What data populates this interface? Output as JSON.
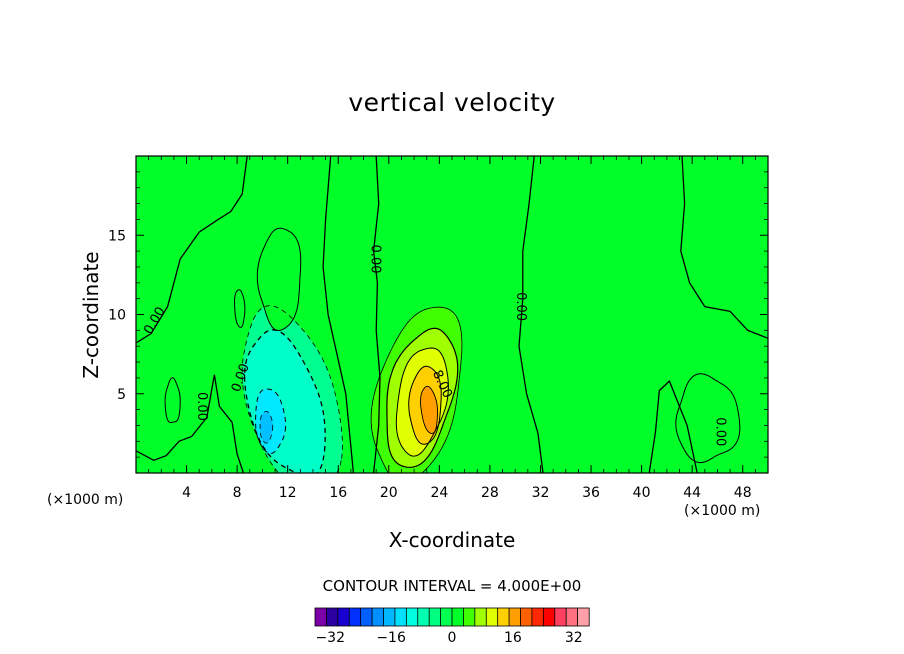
{
  "chart_data": {
    "type": "heatmap",
    "title": "vertical velocity",
    "xlabel": "X-coordinate",
    "ylabel": "Z-coordinate",
    "x_unit_left": "(×1000 m)",
    "x_unit_right": "(×1000 m)",
    "xlim": [
      0,
      50
    ],
    "ylim": [
      0,
      20
    ],
    "x_ticks": [
      "4",
      "8",
      "12",
      "16",
      "20",
      "24",
      "28",
      "32",
      "36",
      "40",
      "44",
      "48"
    ],
    "y_ticks": [
      "5",
      "10",
      "15"
    ],
    "contour_interval_text": "CONTOUR INTERVAL = 4.000E+00",
    "contour_interval": 4,
    "colorbar": {
      "min": -36,
      "max": 36,
      "tick_labels": [
        "−32",
        "−16",
        "0",
        "16",
        "32"
      ],
      "colors": [
        "#7c00a8",
        "#2c00a0",
        "#1a00d0",
        "#0030ff",
        "#0060ff",
        "#0090ff",
        "#00b8ff",
        "#00e0ff",
        "#00ffe0",
        "#00ffb0",
        "#00ff80",
        "#00ff50",
        "#00ff28",
        "#40ff00",
        "#a0ff00",
        "#e0ff00",
        "#ffd000",
        "#ffa000",
        "#ff6000",
        "#ff2800",
        "#ff0000",
        "#ff4060",
        "#ff7080",
        "#ffa0a8"
      ]
    },
    "background_color": "#00ff28",
    "features": [
      {
        "name": "updraft-core",
        "x": 23,
        "z": 4,
        "peak": 10
      },
      {
        "name": "downdraft-core",
        "x": 10,
        "z": 3.5,
        "peak": -12
      },
      {
        "name": "weak-updraft",
        "x": 11,
        "z": 12.5,
        "peak": 2
      }
    ],
    "contour_labels": [
      {
        "text": "0.00",
        "x": 1.5,
        "z": 9.6,
        "angle": -60
      },
      {
        "text": "0.00",
        "x": 5.2,
        "z": 4.2,
        "angle": 90
      },
      {
        "text": "0.00",
        "x": 8.3,
        "z": 6.0,
        "angle": -70
      },
      {
        "text": "0.00",
        "x": 18.9,
        "z": 13.5,
        "angle": 90
      },
      {
        "text": "8.00",
        "x": 24.2,
        "z": 5.6,
        "angle": 65
      },
      {
        "text": "0.00",
        "x": 30.4,
        "z": 10.5,
        "angle": 90
      },
      {
        "text": "0.00",
        "x": 46.2,
        "z": 2.6,
        "angle": 90
      }
    ]
  }
}
